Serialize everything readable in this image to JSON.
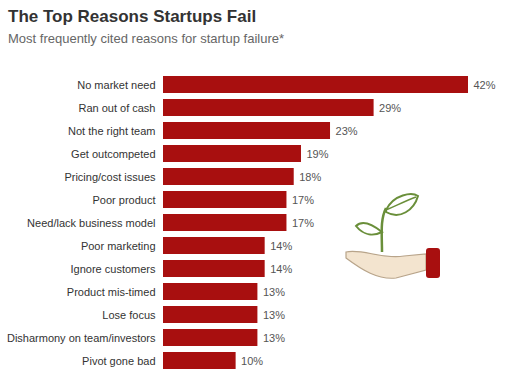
{
  "chart_data": {
    "type": "bar",
    "orientation": "horizontal",
    "title": "The Top Reasons Startups Fail",
    "subtitle": "Most frequently cited reasons for startup failure*",
    "categories": [
      "No market need",
      "Ran out of cash",
      "Not the right team",
      "Get outcompeted",
      "Pricing/cost issues",
      "Poor product",
      "Need/lack business model",
      "Poor marketing",
      "Ignore customers",
      "Product mis-timed",
      "Lose focus",
      "Disharmony on team/investors",
      "Pivot gone bad"
    ],
    "values": [
      42,
      29,
      23,
      19,
      18,
      17,
      17,
      14,
      14,
      13,
      13,
      13,
      10
    ],
    "value_labels": [
      "42%",
      "29%",
      "23%",
      "19%",
      "18%",
      "17%",
      "17%",
      "14%",
      "14%",
      "13%",
      "13%",
      "13%",
      "10%"
    ],
    "color": "#a80f0f",
    "data_labels": true,
    "tick_labels": "y",
    "grid": false
  }
}
